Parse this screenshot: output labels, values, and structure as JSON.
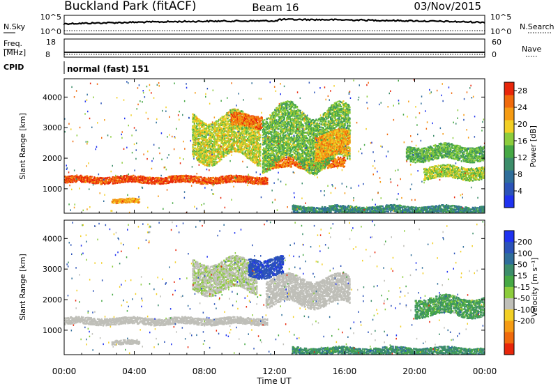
{
  "header": {
    "station": "Buckland Park (fitACF)",
    "beam": "Beam 16",
    "date": "03/Nov/2015"
  },
  "strip_panels": {
    "nsky": {
      "label": "N.Sky",
      "tick_top": "10^5",
      "tick_bottom": "10^0"
    },
    "nsearch": {
      "label": "N.Search",
      "tick_top": "10^5",
      "tick_bottom": "10^0"
    },
    "freq": {
      "label_line1": "Freq.",
      "label_line2": "[MHz]",
      "tick_top": "18",
      "tick_bottom": "8"
    },
    "nave": {
      "label": "Nave",
      "tick_top": "60",
      "tick_bottom": "0"
    },
    "cpid": {
      "label": "CPID",
      "value": "normal (fast) 151"
    }
  },
  "colors": {
    "power_scale": [
      "#1f32f0",
      "#2b53b8",
      "#2f6e9a",
      "#3c8d6a",
      "#46a844",
      "#8ccc3c",
      "#f2cf25",
      "#f59b13",
      "#f06a0c",
      "#e8260a"
    ],
    "velocity_scale": [
      "#1f32f0",
      "#2b53b8",
      "#2f6e9a",
      "#3c8d6a",
      "#46a844",
      "#8ccc3c",
      "#bfbfb8",
      "#f2cf25",
      "#f59b13",
      "#f06a0c",
      "#e8260a"
    ],
    "ground_scatter": "#bfbfb8"
  },
  "chart_data": [
    {
      "type": "heatmap",
      "name": "power",
      "xlabel": "",
      "ylabel": "Slant Range [km]",
      "xlim_hours": [
        0,
        24
      ],
      "ylim": [
        200,
        4600
      ],
      "yticks": [
        1000,
        2000,
        3000,
        4000
      ],
      "colorbar": {
        "label": "Power [dB]",
        "ticks": [
          4,
          8,
          12,
          16,
          20,
          24,
          28
        ],
        "range": [
          0,
          30
        ]
      },
      "bands": [
        {
          "name": "near-range E-region",
          "t_start": 0,
          "t_end": 11.6,
          "range_center": 1320,
          "range_half_width": 110,
          "value_db": 27
        },
        {
          "name": "near-range E-region continuation",
          "t_start": 11.6,
          "t_end": 16.0,
          "range_center": 1850,
          "range_half_width": 160,
          "value_db": 25
        },
        {
          "name": "lower patch",
          "t_start": 2.7,
          "t_end": 4.3,
          "range_center": 620,
          "range_half_width": 70,
          "value_db": 22
        },
        {
          "name": "mid-range F-region",
          "t_start": 7.3,
          "t_end": 11.2,
          "range_center": 2700,
          "range_half_width": 700,
          "value_db": 18
        },
        {
          "name": "upper echoes",
          "t_start": 9.5,
          "t_end": 11.3,
          "range_center": 3250,
          "range_half_width": 200,
          "value_db": 25
        },
        {
          "name": "afternoon mixed",
          "t_start": 11.3,
          "t_end": 16.3,
          "range_center": 2700,
          "range_half_width": 900,
          "value_db": 15
        },
        {
          "name": "afternoon band",
          "t_start": 14.3,
          "t_end": 16.3,
          "range_center": 2450,
          "range_half_width": 400,
          "value_db": 22
        },
        {
          "name": "evening arc upper",
          "t_start": 19.5,
          "t_end": 24.0,
          "range_center": 2200,
          "range_half_width": 240,
          "value_db": 14
        },
        {
          "name": "evening arc lower",
          "t_start": 20.5,
          "t_end": 24.0,
          "range_center": 1550,
          "range_half_width": 200,
          "value_db": 17
        },
        {
          "name": "near ground band",
          "t_start": 13.0,
          "t_end": 24.0,
          "range_center": 340,
          "range_half_width": 120,
          "value_db": 10
        }
      ]
    },
    {
      "type": "heatmap",
      "name": "velocity",
      "xlabel": "Time UT",
      "ylabel": "Slant Range [km]",
      "xlim_hours": [
        0,
        24
      ],
      "ylim": [
        200,
        4600
      ],
      "yticks": [
        1000,
        2000,
        3000,
        4000
      ],
      "xticks": [
        "00:00",
        "04:00",
        "08:00",
        "12:00",
        "16:00",
        "20:00",
        "00:00"
      ],
      "colorbar": {
        "label": "Velocity [m s⁻¹]",
        "ticks": [
          200,
          100,
          50,
          15,
          -15,
          -50,
          -100,
          -200
        ],
        "range": [
          -250,
          250
        ]
      },
      "bands": [
        {
          "name": "ground scatter near",
          "t_start": 0,
          "t_end": 11.6,
          "range_center": 1320,
          "range_half_width": 110,
          "value": 0
        },
        {
          "name": "ground scatter lower patch",
          "t_start": 2.7,
          "t_end": 4.3,
          "range_center": 620,
          "range_half_width": 70,
          "value": 0
        },
        {
          "name": "ground scatter afternoon",
          "t_start": 11.5,
          "t_end": 16.3,
          "range_center": 2300,
          "range_half_width": 450,
          "value": 0
        },
        {
          "name": "negative velocity F-region",
          "t_start": 7.3,
          "t_end": 11.0,
          "range_center": 2800,
          "range_half_width": 500,
          "value": -60
        },
        {
          "name": "positive velocity upper",
          "t_start": 10.5,
          "t_end": 12.5,
          "range_center": 3100,
          "range_half_width": 300,
          "value": 180
        },
        {
          "name": "evening arc",
          "t_start": 20.0,
          "t_end": 24.0,
          "range_center": 1800,
          "range_half_width": 300,
          "value": 10
        },
        {
          "name": "near ground band",
          "t_start": 13.0,
          "t_end": 24.0,
          "range_center": 340,
          "range_half_width": 120,
          "value": 30
        }
      ]
    }
  ]
}
